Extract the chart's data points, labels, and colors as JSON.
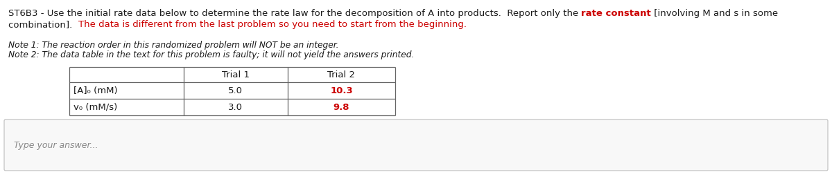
{
  "title_black1": "ST6B3 - Use the initial rate data below to determine the rate law for the decomposition of A into products.  Report only the ",
  "title_red1": "rate constant",
  "title_black2": " [involving M and s in some",
  "title_line2_black1": "combination].  ",
  "title_line2_red": "The data is different from the last problem so you need to start from the beginning.",
  "note1": "Note 1: The reaction order in this randomized problem will NOT be an integer.",
  "note2": "Note 2: The data table in the text for this problem is faulty; it will not yield the answers printed.",
  "row1_label": "[A]₀ (mM)",
  "row1_trial1": "5.0",
  "row1_trial2": "10.3",
  "row2_label": "v₀ (mM/s)",
  "row2_trial1": "3.0",
  "row2_trial2": "9.8",
  "answer_placeholder": "Type your answer...",
  "bg_color": "#ffffff",
  "text_color_black": "#1a1a1a",
  "text_color_red": "#cc0000",
  "text_color_grey": "#888888",
  "font_size_main": 9.5,
  "font_size_note": 8.8,
  "font_size_table": 9.5,
  "font_size_answer": 9.0
}
